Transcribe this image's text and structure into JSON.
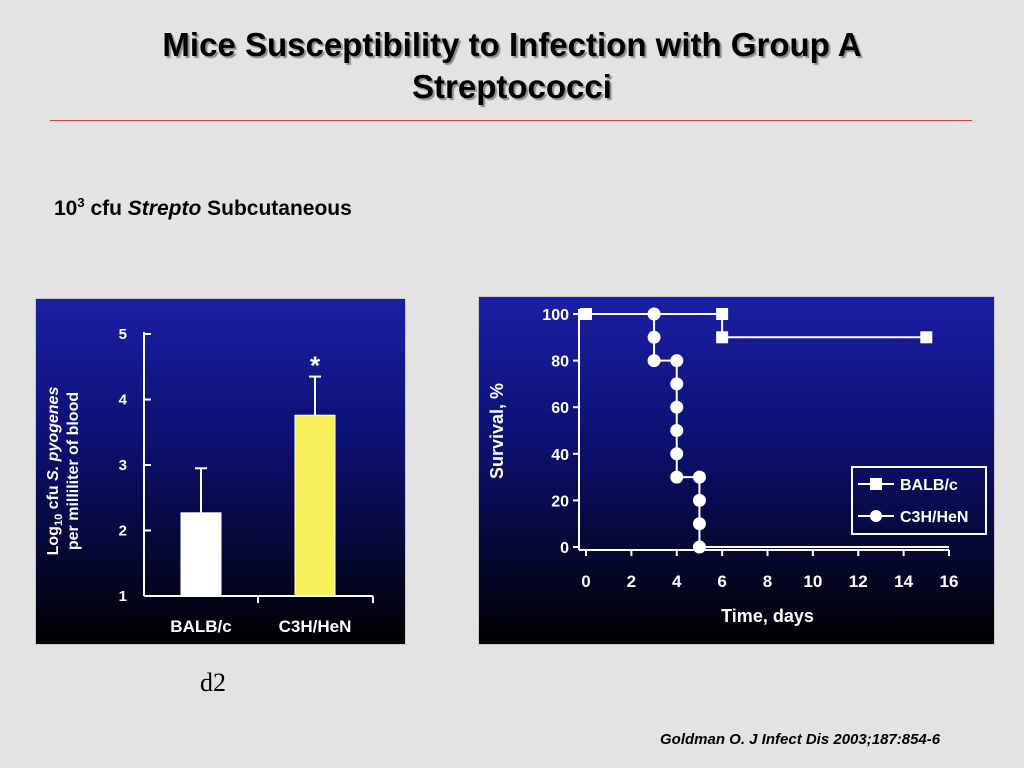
{
  "slide": {
    "title": "Mice Susceptibility to Infection with Group A Streptococci",
    "subtitle": {
      "dose_base": "10",
      "dose_exp": "3",
      "unit": "cfu",
      "organism": "Strepto",
      "route": "Subcutaneous"
    },
    "caption": "d2",
    "citation": "Goldman O. J Infect Dis 2003;187:854-6"
  },
  "colors": {
    "slide_background": "#e3e3e3",
    "panel_top": "#1b1fa3",
    "panel_bottom": "#000000",
    "balbc_bar": "#ffffff",
    "c3h_bar": "#f7f05a",
    "axis": "#ffffff",
    "title_rule": "#d84040"
  },
  "chart_data": [
    {
      "type": "bar",
      "ylabel_line1_prefix": "Log",
      "ylabel_line1_sub": "10",
      "ylabel_line1_mid": " cfu ",
      "ylabel_line1_species": "S. pyogenes",
      "ylabel_line2": "per milliliter of blood",
      "ylim": [
        1,
        5
      ],
      "yticks": [
        "1",
        "2",
        "3",
        "4",
        "5"
      ],
      "categories": [
        "BALB/c",
        "C3H/HeN"
      ],
      "values": [
        2.27,
        3.76
      ],
      "error_upper": [
        2.95,
        4.35
      ],
      "annotation": "*",
      "annotation_category": "C3H/HeN",
      "legend": "none",
      "grid": false
    },
    {
      "type": "line",
      "xlabel": "Time, days",
      "ylabel": "Survival, %",
      "xlim": [
        0,
        16
      ],
      "ylim": [
        0,
        100
      ],
      "xticks": [
        "0",
        "2",
        "4",
        "6",
        "8",
        "10",
        "12",
        "14",
        "16"
      ],
      "yticks": [
        "0",
        "20",
        "40",
        "60",
        "80",
        "100"
      ],
      "legend_position": "bottom-right",
      "grid": false,
      "series": [
        {
          "name": "BALB/c",
          "marker": "square",
          "points": [
            [
              0,
              100
            ],
            [
              6,
              100
            ],
            [
              6,
              90
            ],
            [
              15,
              90
            ]
          ]
        },
        {
          "name": "C3H/HeN",
          "marker": "circle",
          "points": [
            [
              3,
              100
            ],
            [
              3,
              90
            ],
            [
              3,
              80
            ],
            [
              4,
              80
            ],
            [
              4,
              70
            ],
            [
              4,
              60
            ],
            [
              4,
              50
            ],
            [
              4,
              40
            ],
            [
              4,
              30
            ],
            [
              5,
              30
            ],
            [
              5,
              20
            ],
            [
              5,
              10
            ],
            [
              5,
              0
            ]
          ],
          "line": [
            [
              0,
              100
            ],
            [
              3,
              100
            ],
            [
              3,
              80
            ],
            [
              4,
              80
            ],
            [
              4,
              30
            ],
            [
              5,
              30
            ],
            [
              5,
              0
            ],
            [
              16,
              0
            ]
          ]
        }
      ]
    }
  ]
}
